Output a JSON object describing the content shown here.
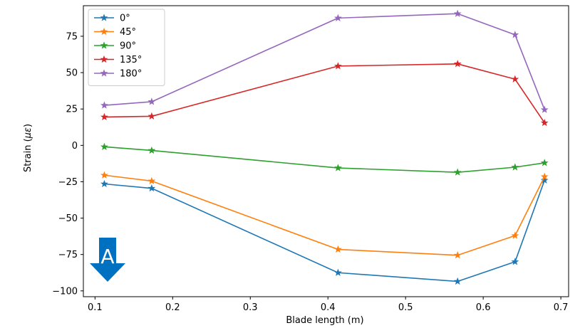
{
  "chart_data": {
    "type": "line",
    "title": "",
    "xlabel": "Blade length (m)",
    "ylabel": "Strain (",
    "ylabel_symbol": "με",
    "ylabel_close": ")",
    "xlim": [
      0.085,
      0.71
    ],
    "ylim": [
      -104,
      96
    ],
    "x_ticks": [
      0.1,
      0.2,
      0.3,
      0.4,
      0.5,
      0.6,
      0.7
    ],
    "x_tick_labels": [
      "0.1",
      "0.2",
      "0.3",
      "0.4",
      "0.5",
      "0.6",
      "0.7"
    ],
    "y_ticks": [
      -100,
      -75,
      -50,
      -25,
      0,
      25,
      50,
      75
    ],
    "y_tick_labels": [
      "−100",
      "−75",
      "−50",
      "−25",
      "0",
      "25",
      "50",
      "75"
    ],
    "grid": false,
    "legend_position": "top-left",
    "marker": "star",
    "x": [
      0.112,
      0.173,
      0.413,
      0.567,
      0.641,
      0.679
    ],
    "series": [
      {
        "name": "0°",
        "color": "#1f77b4",
        "values": [
          -26.5,
          -29.5,
          -87.5,
          -93.5,
          -80,
          -24
        ]
      },
      {
        "name": "45°",
        "color": "#ff7f0e",
        "values": [
          -20.5,
          -24.5,
          -71.5,
          -75.5,
          -62,
          -21.5
        ]
      },
      {
        "name": "90°",
        "color": "#2ca02c",
        "values": [
          -1,
          -3.5,
          -15.5,
          -18.5,
          -15,
          -12
        ]
      },
      {
        "name": "135°",
        "color": "#d62728",
        "values": [
          19.5,
          20,
          54.5,
          56,
          45.5,
          15.5
        ]
      },
      {
        "name": "180°",
        "color": "#9467bd",
        "values": [
          27.5,
          30,
          87.5,
          90.5,
          76,
          24.5
        ]
      }
    ],
    "annotation": {
      "text": "A",
      "color": "#0070c0",
      "icon": "down-arrow-icon"
    }
  }
}
